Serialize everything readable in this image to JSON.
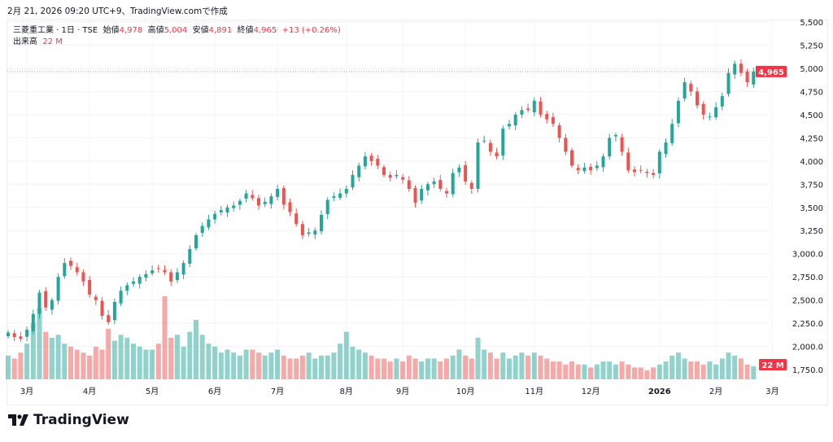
{
  "header": {
    "caption": "2月 21, 2026 09:20 UTC+9、TradingView.comで作成"
  },
  "legend": {
    "symbol": "三菱重工業 · 1日 · TSE",
    "open_label": "始値",
    "open": "4,978",
    "high_label": "高値",
    "high": "5,004",
    "low_label": "安値",
    "low": "4,891",
    "close_label": "終値",
    "close": "4,965",
    "change": "+13 (+0.26%)",
    "volume_label": "出来高",
    "volume": "22 M"
  },
  "price_tag": "4,965",
  "volume_tag": "22 M",
  "logo": "TradingView",
  "colors": {
    "up": "#26a69a",
    "down": "#ef5350",
    "tag": "#f23645"
  },
  "chart_data": {
    "type": "candlestick",
    "title": "三菱重工業 · 1日 · TSE",
    "y_ticks": [
      "5,500",
      "5,250",
      "5,000",
      "4,750",
      "4,500",
      "4,250",
      "4,000",
      "3,750",
      "3,500",
      "3,250",
      "3,000.0",
      "2,750.0",
      "2,500.0",
      "2,250.0",
      "2,000.0",
      "1,750.0"
    ],
    "y_tick_values": [
      5500,
      5250,
      5000,
      4750,
      4500,
      4250,
      4000,
      3750,
      3500,
      3250,
      3000,
      2750,
      2500,
      2250,
      2000,
      1750
    ],
    "ylim": [
      1750,
      5500
    ],
    "x_ticks": [
      {
        "label": "3月",
        "i": 3
      },
      {
        "label": "4月",
        "i": 13
      },
      {
        "label": "5月",
        "i": 23
      },
      {
        "label": "6月",
        "i": 33
      },
      {
        "label": "7月",
        "i": 43
      },
      {
        "label": "8月",
        "i": 54
      },
      {
        "label": "9月",
        "i": 63
      },
      {
        "label": "10月",
        "i": 73
      },
      {
        "label": "11月",
        "i": 84
      },
      {
        "label": "12月",
        "i": 93
      },
      {
        "label": "2026",
        "i": 104,
        "bold": true
      },
      {
        "label": "2月",
        "i": 113
      },
      {
        "label": "3月",
        "i": 122
      }
    ],
    "closes": [
      2150,
      2100,
      2080,
      2180,
      2350,
      2580,
      2420,
      2500,
      2750,
      2900,
      2870,
      2800,
      2700,
      2560,
      2500,
      2330,
      2260,
      2480,
      2600,
      2660,
      2700,
      2750,
      2780,
      2820,
      2840,
      2800,
      2700,
      2800,
      2900,
      3050,
      3200,
      3300,
      3370,
      3430,
      3470,
      3500,
      3520,
      3570,
      3650,
      3600,
      3520,
      3560,
      3620,
      3700,
      3530,
      3450,
      3320,
      3200,
      3230,
      3250,
      3420,
      3580,
      3620,
      3650,
      3700,
      3850,
      3950,
      4050,
      4000,
      3950,
      3850,
      3820,
      3850,
      3800,
      3700,
      3550,
      3700,
      3750,
      3780,
      3700,
      3650,
      3870,
      3930,
      3780,
      3700,
      4200,
      4220,
      4100,
      4050,
      4350,
      4400,
      4500,
      4550,
      4550,
      4650,
      4500,
      4450,
      4400,
      4250,
      4100,
      3950,
      3900,
      3930,
      3900,
      3950,
      4050,
      4250,
      4280,
      4100,
      3900,
      3880,
      3900,
      3870,
      3850,
      4100,
      4200,
      4400,
      4650,
      4850,
      4750,
      4600,
      4500,
      4480,
      4580,
      4700,
      4950,
      5050,
      4950,
      4850,
      4965
    ],
    "volumes_m": [
      40,
      35,
      45,
      60,
      95,
      120,
      80,
      70,
      75,
      60,
      55,
      50,
      45,
      40,
      55,
      50,
      85,
      65,
      75,
      70,
      60,
      55,
      50,
      50,
      60,
      140,
      70,
      75,
      55,
      80,
      100,
      75,
      60,
      55,
      45,
      50,
      45,
      40,
      50,
      50,
      45,
      40,
      45,
      50,
      40,
      35,
      35,
      40,
      45,
      35,
      40,
      40,
      45,
      60,
      80,
      55,
      50,
      45,
      40,
      35,
      35,
      30,
      35,
      30,
      40,
      35,
      30,
      35,
      35,
      30,
      35,
      40,
      50,
      40,
      35,
      70,
      50,
      45,
      35,
      45,
      35,
      40,
      45,
      40,
      45,
      40,
      35,
      30,
      30,
      25,
      30,
      25,
      25,
      20,
      25,
      30,
      30,
      25,
      30,
      25,
      20,
      20,
      15,
      20,
      25,
      30,
      40,
      45,
      35,
      30,
      30,
      25,
      30,
      25,
      35,
      45,
      40,
      35,
      25,
      22
    ]
  }
}
